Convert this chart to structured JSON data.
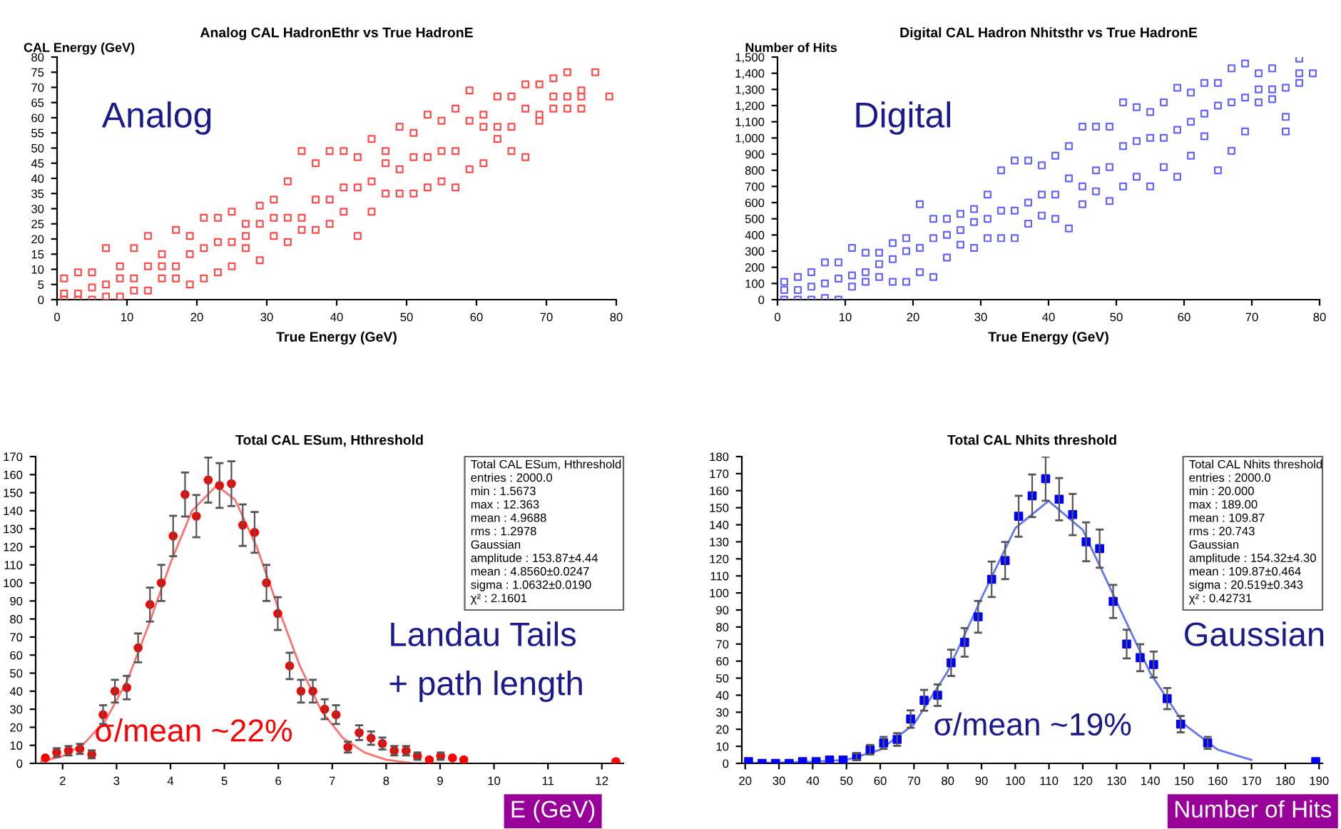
{
  "chart_data": [
    {
      "type": "scatter",
      "title": "Analog CAL HadronEthr vs True HadronE",
      "xlabel": "True Energy (GeV)",
      "ylabel": "CAL Energy (GeV)",
      "marker": "square",
      "xlim": [
        0,
        80
      ],
      "xticks": [
        0,
        10,
        20,
        30,
        40,
        50,
        60,
        70,
        80
      ],
      "ylim": [
        0,
        80
      ],
      "yticks": [
        0,
        5,
        10,
        15,
        20,
        25,
        30,
        35,
        40,
        45,
        50,
        55,
        60,
        65,
        70,
        75,
        80
      ],
      "annotations": [
        "Analog"
      ],
      "series": [
        {
          "color": "#ff4d4d",
          "x": [
            1,
            1,
            1,
            3,
            3,
            3,
            5,
            5,
            5,
            7,
            7,
            7,
            9,
            9,
            9,
            11,
            11,
            11,
            13,
            13,
            13,
            15,
            15,
            15,
            17,
            17,
            17,
            19,
            19,
            19,
            21,
            21,
            21,
            23,
            23,
            23,
            25,
            25,
            25,
            27,
            27,
            27,
            29,
            29,
            29,
            31,
            31,
            31,
            33,
            33,
            33,
            35,
            35,
            35,
            37,
            37,
            37,
            39,
            39,
            39,
            41,
            41,
            41,
            43,
            43,
            43,
            45,
            45,
            45,
            47,
            47,
            47,
            49,
            49,
            49,
            51,
            51,
            51,
            53,
            53,
            53,
            55,
            55,
            55,
            57,
            57,
            57,
            59,
            59,
            59,
            61,
            61,
            61,
            63,
            63,
            63,
            65,
            65,
            65,
            67,
            67,
            67,
            69,
            69,
            69,
            71,
            71,
            71,
            73,
            73,
            73,
            75,
            75,
            75,
            77,
            79
          ],
          "values": [
            0,
            2,
            7,
            0,
            2,
            9,
            0,
            4,
            9,
            1,
            5,
            17,
            1,
            7,
            11,
            3,
            7,
            17,
            3,
            11,
            21,
            7,
            11,
            15,
            7,
            11,
            23,
            5,
            15,
            21,
            7,
            17,
            27,
            9,
            19,
            27,
            11,
            19,
            29,
            17,
            21,
            25,
            13,
            25,
            31,
            21,
            27,
            33,
            19,
            27,
            39,
            23,
            27,
            49,
            23,
            33,
            45,
            25,
            33,
            49,
            29,
            37,
            49,
            21,
            37,
            47,
            29,
            39,
            53,
            35,
            45,
            49,
            35,
            43,
            57,
            35,
            47,
            55,
            37,
            47,
            61,
            39,
            49,
            59,
            37,
            49,
            63,
            43,
            59,
            69,
            45,
            57,
            61,
            53,
            57,
            67,
            49,
            57,
            67,
            47,
            63,
            71,
            59,
            61,
            71,
            63,
            67,
            73,
            63,
            67,
            75,
            63,
            67,
            69,
            75,
            67
          ]
        }
      ]
    },
    {
      "type": "scatter",
      "title": "Digital CAL Hadron Nhitsthr vs True HadronE",
      "xlabel": "True Energy (GeV)",
      "ylabel": "Number of Hits",
      "marker": "square",
      "xlim": [
        0,
        80
      ],
      "xticks": [
        0,
        10,
        20,
        30,
        40,
        50,
        60,
        70,
        80
      ],
      "ylim": [
        0,
        1500
      ],
      "yticks": [
        0,
        100,
        200,
        300,
        400,
        500,
        600,
        700,
        800,
        900,
        {
          "value": 1000,
          "label": "1,000"
        },
        {
          "value": 1100,
          "label": "1,100"
        },
        {
          "value": 1200,
          "label": "1,200"
        },
        {
          "value": 1300,
          "label": "1,300"
        },
        {
          "value": 1400,
          "label": "1,400"
        },
        {
          "value": 1500,
          "label": "1,500"
        }
      ],
      "annotations": [
        "Digital"
      ],
      "series": [
        {
          "color": "#6666ff",
          "x": [
            1,
            1,
            1,
            3,
            3,
            3,
            5,
            5,
            5,
            7,
            7,
            7,
            9,
            9,
            9,
            11,
            11,
            11,
            13,
            13,
            13,
            15,
            15,
            15,
            17,
            17,
            17,
            19,
            19,
            19,
            21,
            21,
            21,
            23,
            23,
            23,
            25,
            25,
            25,
            27,
            27,
            27,
            29,
            29,
            29,
            31,
            31,
            31,
            33,
            33,
            33,
            35,
            35,
            35,
            37,
            37,
            37,
            39,
            39,
            39,
            41,
            41,
            41,
            43,
            43,
            43,
            45,
            45,
            45,
            47,
            47,
            47,
            49,
            49,
            49,
            51,
            51,
            51,
            53,
            53,
            53,
            55,
            55,
            55,
            57,
            57,
            57,
            59,
            59,
            59,
            61,
            61,
            61,
            63,
            63,
            63,
            65,
            65,
            65,
            67,
            67,
            67,
            69,
            69,
            69,
            71,
            71,
            71,
            73,
            73,
            73,
            75,
            75,
            75,
            77,
            77,
            77,
            79
          ],
          "values": [
            0,
            60,
            110,
            0,
            60,
            140,
            0,
            80,
            170,
            10,
            100,
            230,
            0,
            130,
            230,
            80,
            150,
            320,
            110,
            170,
            290,
            140,
            220,
            290,
            110,
            250,
            350,
            110,
            300,
            380,
            170,
            320,
            590,
            140,
            380,
            500,
            260,
            400,
            500,
            340,
            430,
            530,
            320,
            480,
            560,
            380,
            500,
            650,
            380,
            550,
            800,
            380,
            550,
            860,
            470,
            600,
            860,
            520,
            650,
            830,
            500,
            650,
            890,
            440,
            750,
            950,
            590,
            700,
            1070,
            670,
            800,
            1070,
            610,
            820,
            1070,
            700,
            950,
            1220,
            760,
            980,
            1190,
            700,
            1000,
            1160,
            820,
            1000,
            1220,
            760,
            1050,
            1310,
            890,
            1100,
            1280,
            1010,
            1150,
            1340,
            800,
            1200,
            1340,
            920,
            1220,
            1430,
            1040,
            1250,
            1460,
            1220,
            1300,
            1400,
            1240,
            1300,
            1430,
            1040,
            1130,
            1310,
            1340,
            1400,
            1490,
            1400
          ]
        }
      ]
    },
    {
      "type": "scatter",
      "title": "Total CAL ESum, Hthreshold",
      "xlabel": "E (GeV)",
      "xlim": [
        1.5,
        12.4
      ],
      "xticks": [
        2,
        3,
        4,
        5,
        6,
        7,
        8,
        9,
        10,
        11,
        12
      ],
      "ylim": [
        0,
        170
      ],
      "yticks": [
        0,
        10,
        20,
        30,
        40,
        50,
        60,
        70,
        80,
        90,
        100,
        110,
        120,
        130,
        140,
        150,
        160,
        170
      ],
      "annotations": [
        "Total CAL ESum, Hthreshold",
        "entries : 2000.0",
        "min : 1.5673",
        "max : 12.363",
        "mean : 4.9688",
        "rms : 1.2978",
        "Gaussian",
        "amplitude : 153.87±4.44",
        "mean : 4.8560±0.0247",
        "sigma : 1.0632±0.0190",
        "χ² : 2.1601",
        "Landau Tails",
        "+ path length",
        "σ/mean ~22%"
      ],
      "series": [
        {
          "type": "scatter",
          "marker": "circle",
          "color": "#ff0000",
          "x": [
            1.68,
            1.89,
            2.11,
            2.32,
            2.54,
            2.75,
            2.97,
            3.19,
            3.4,
            3.62,
            3.83,
            4.05,
            4.27,
            4.48,
            4.7,
            4.91,
            5.13,
            5.34,
            5.56,
            5.78,
            5.99,
            6.21,
            6.42,
            6.64,
            6.86,
            7.07,
            7.29,
            7.5,
            7.72,
            7.93,
            8.15,
            8.37,
            8.58,
            8.8,
            9.01,
            9.23,
            9.44,
            12.26
          ],
          "values": [
            3,
            6,
            7,
            8,
            5,
            27,
            40,
            42,
            64,
            88,
            100,
            126,
            149,
            137,
            157,
            154,
            155,
            132,
            128,
            100,
            83,
            54,
            40,
            40,
            30,
            27,
            9,
            17,
            14,
            11,
            7,
            7,
            4,
            2,
            4,
            3,
            2,
            1
          ],
          "errors": [
            null,
            2.4,
            2.6,
            2.8,
            2.2,
            5.2,
            6.3,
            6.5,
            8,
            9.4,
            10,
            11.2,
            12.2,
            11.7,
            12.5,
            12.4,
            12.4,
            11.5,
            11.3,
            10,
            9.1,
            7.3,
            6.3,
            6.3,
            5.5,
            5.2,
            3,
            4.1,
            3.7,
            3.3,
            2.6,
            2.6,
            2,
            null,
            2,
            null,
            null,
            null
          ]
        },
        {
          "type": "line",
          "marker": "none",
          "line_style": "solid",
          "color": "#ff7070",
          "x": [
            1.6,
            2.0,
            2.4,
            2.8,
            3.2,
            3.6,
            4.0,
            4.4,
            4.856,
            5.2,
            5.6,
            6.0,
            6.4,
            6.8,
            7.2,
            7.6,
            8.0,
            8.5,
            9.0
          ],
          "values": [
            1,
            4,
            11,
            24,
            46,
            77,
            111,
            140,
            154,
            146,
            120,
            86,
            54,
            29,
            14,
            6,
            2,
            0,
            0
          ]
        }
      ]
    },
    {
      "type": "scatter",
      "title": "Total CAL Nhits threshold",
      "xlabel": "Number of Hits",
      "xlim": [
        19,
        191
      ],
      "xticks": [
        20,
        30,
        40,
        50,
        60,
        70,
        80,
        90,
        100,
        110,
        120,
        130,
        140,
        150,
        160,
        170,
        180,
        190
      ],
      "ylim": [
        0,
        180
      ],
      "yticks": [
        0,
        10,
        20,
        30,
        40,
        50,
        60,
        70,
        80,
        90,
        100,
        110,
        120,
        130,
        140,
        150,
        160,
        170,
        180
      ],
      "annotations": [
        "Total CAL Nhits threshold",
        "entries : 2000.0",
        "min : 20.000",
        "max : 189.00",
        "mean : 109.87",
        "rms : 20.743",
        "Gaussian",
        "amplitude : 154.32±4.30",
        "mean : 109.87±0.464",
        "sigma : 20.519±0.343",
        "χ² : 0.42731",
        "Gaussian",
        "σ/mean ~19%"
      ],
      "series": [
        {
          "type": "scatter",
          "marker": "square",
          "color": "#0000ff",
          "x": [
            21,
            25,
            29,
            33,
            37,
            41,
            45,
            49,
            53,
            57,
            61,
            65,
            69,
            73,
            77,
            81,
            85,
            89,
            93,
            97,
            101,
            105,
            109,
            113,
            117,
            121,
            125,
            129,
            133,
            137,
            141,
            145,
            149,
            157,
            189
          ],
          "values": [
            1,
            0,
            0,
            0,
            1,
            1,
            2,
            2,
            4,
            8,
            12,
            14,
            26,
            37,
            40,
            59,
            71,
            86,
            108,
            119,
            145,
            157,
            167,
            155,
            146,
            130,
            126,
            95,
            70,
            62,
            58,
            38,
            23,
            12,
            1
          ],
          "errors": [
            null,
            null,
            null,
            null,
            null,
            null,
            null,
            null,
            2,
            2.8,
            3.5,
            3.7,
            5.1,
            6.1,
            6.3,
            7.7,
            8.4,
            9.3,
            10.4,
            10.9,
            12,
            12.5,
            12.9,
            12.4,
            12.1,
            11.4,
            11.2,
            9.7,
            8.4,
            7.9,
            7.6,
            6.2,
            4.8,
            3.5,
            null
          ]
        },
        {
          "type": "line",
          "marker": "none",
          "line_style": "solid",
          "color": "#6677ee",
          "x": [
            20,
            40,
            50,
            60,
            70,
            80,
            90,
            100,
            109.87,
            120,
            130,
            140,
            150,
            160,
            170
          ],
          "values": [
            0,
            1,
            2,
            8,
            23,
            54,
            97,
            138,
            154,
            137,
            95,
            53,
            23,
            8,
            2
          ]
        }
      ]
    }
  ]
}
